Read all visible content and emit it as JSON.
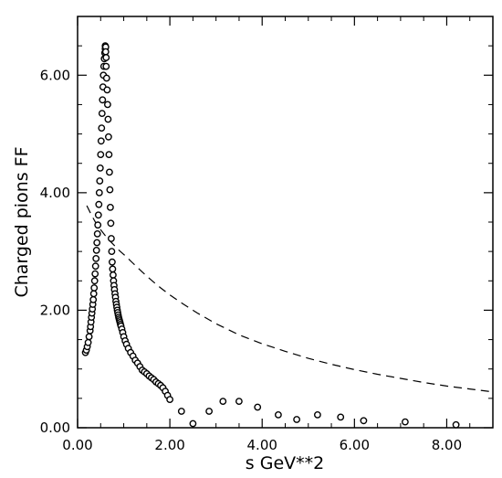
{
  "chart_data": {
    "type": "scatter",
    "xlabel": "s  GeV**2",
    "ylabel": "Charged  pions  FF",
    "xlim": [
      0,
      9
    ],
    "ylim": [
      0,
      7
    ],
    "xticks": [
      0,
      2,
      4,
      6,
      8
    ],
    "yticks": [
      0,
      2,
      4,
      6
    ],
    "xtick_labels": [
      "0.00",
      "2.00",
      "4.00",
      "6.00",
      "8.00"
    ],
    "ytick_labels": [
      "0.00",
      "2.00",
      "4.00",
      "6.00"
    ],
    "grid": false,
    "legend": "none",
    "series": [
      {
        "style": "open-circle-markers",
        "x": [
          0.17,
          0.19,
          0.21,
          0.23,
          0.25,
          0.27,
          0.28,
          0.29,
          0.3,
          0.31,
          0.32,
          0.33,
          0.34,
          0.35,
          0.36,
          0.37,
          0.38,
          0.39,
          0.4,
          0.41,
          0.42,
          0.43,
          0.44,
          0.45,
          0.46,
          0.47,
          0.48,
          0.49,
          0.5,
          0.51,
          0.52,
          0.53,
          0.54,
          0.55,
          0.56,
          0.57,
          0.58,
          0.59,
          0.6,
          0.6,
          0.61,
          0.61,
          0.62,
          0.62,
          0.63,
          0.64,
          0.65,
          0.66,
          0.67,
          0.68,
          0.69,
          0.7,
          0.71,
          0.72,
          0.73,
          0.74,
          0.75,
          0.76,
          0.77,
          0.78,
          0.79,
          0.8,
          0.81,
          0.82,
          0.83,
          0.84,
          0.85,
          0.86,
          0.87,
          0.88,
          0.89,
          0.9,
          0.91,
          0.92,
          0.93,
          0.94,
          0.96,
          0.98,
          1.0,
          1.03,
          1.06,
          1.1,
          1.15,
          1.2,
          1.25,
          1.3,
          1.35,
          1.4,
          1.45,
          1.5,
          1.55,
          1.6,
          1.65,
          1.7,
          1.75,
          1.8,
          1.85,
          1.9,
          1.95,
          2.0,
          2.25,
          2.5,
          2.85,
          3.15,
          3.5,
          3.9,
          4.35,
          4.75,
          5.2,
          5.7,
          6.2,
          7.1,
          8.2
        ],
        "y": [
          1.28,
          1.32,
          1.38,
          1.45,
          1.55,
          1.65,
          1.72,
          1.8,
          1.88,
          1.95,
          2.02,
          2.1,
          2.18,
          2.28,
          2.38,
          2.5,
          2.62,
          2.75,
          2.88,
          3.02,
          3.15,
          3.3,
          3.45,
          3.62,
          3.8,
          4.0,
          4.2,
          4.42,
          4.65,
          4.88,
          5.1,
          5.35,
          5.58,
          5.8,
          6.0,
          6.15,
          6.28,
          6.38,
          6.45,
          6.5,
          6.48,
          6.4,
          6.3,
          6.15,
          5.95,
          5.75,
          5.5,
          5.25,
          4.95,
          4.65,
          4.35,
          4.05,
          3.75,
          3.48,
          3.22,
          3.0,
          2.82,
          2.7,
          2.6,
          2.5,
          2.42,
          2.35,
          2.28,
          2.22,
          2.15,
          2.1,
          2.05,
          2.0,
          1.96,
          1.92,
          1.88,
          1.85,
          1.82,
          1.79,
          1.76,
          1.73,
          1.68,
          1.62,
          1.55,
          1.48,
          1.42,
          1.35,
          1.28,
          1.22,
          1.15,
          1.1,
          1.04,
          0.98,
          0.95,
          0.92,
          0.88,
          0.85,
          0.82,
          0.78,
          0.75,
          0.72,
          0.68,
          0.62,
          0.55,
          0.48,
          0.28,
          0.07,
          0.28,
          0.45,
          0.45,
          0.35,
          0.22,
          0.14,
          0.22,
          0.18,
          0.12,
          0.1,
          0.05
        ]
      },
      {
        "style": "dashed-line",
        "x": [
          0.2,
          0.3,
          0.4,
          0.5,
          0.6,
          0.7,
          0.8,
          0.9,
          1.0,
          1.2,
          1.4,
          1.6,
          1.8,
          2.0,
          2.3,
          2.6,
          3.0,
          3.5,
          4.0,
          4.5,
          5.0,
          5.5,
          6.0,
          6.5,
          7.0,
          7.5,
          8.0,
          8.5,
          9.0
        ],
        "y": [
          3.78,
          3.62,
          3.48,
          3.37,
          3.27,
          3.18,
          3.1,
          3.02,
          2.95,
          2.8,
          2.65,
          2.51,
          2.38,
          2.26,
          2.1,
          1.95,
          1.77,
          1.58,
          1.43,
          1.3,
          1.18,
          1.08,
          0.99,
          0.91,
          0.84,
          0.77,
          0.71,
          0.66,
          0.61
        ]
      }
    ]
  }
}
